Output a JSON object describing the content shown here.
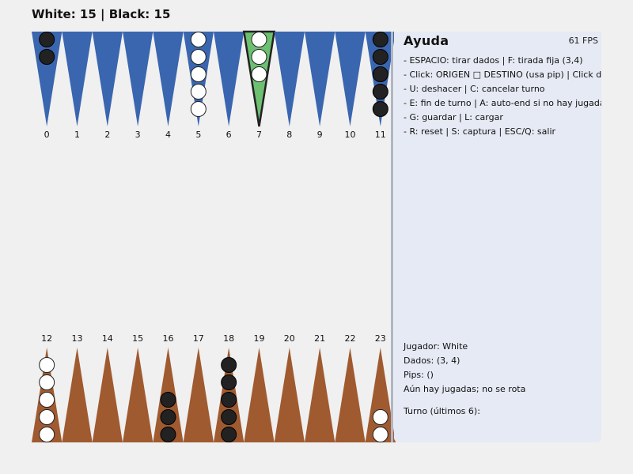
{
  "score": {
    "text": "White: 15 | Black: 15"
  },
  "colors": {
    "top_triangle": "#3a66b0",
    "bottom_triangle": "#a05a30",
    "selected_triangle": "#6cc070",
    "white_checker": "#ffffff",
    "black_checker": "#222222"
  },
  "board": {
    "selected_point": 7,
    "points": [
      {
        "label": "0",
        "white": 0,
        "black": 2
      },
      {
        "label": "1",
        "white": 0,
        "black": 0
      },
      {
        "label": "2",
        "white": 0,
        "black": 0
      },
      {
        "label": "3",
        "white": 0,
        "black": 0
      },
      {
        "label": "4",
        "white": 0,
        "black": 0
      },
      {
        "label": "5",
        "white": 5,
        "black": 0
      },
      {
        "label": "6",
        "white": 0,
        "black": 0
      },
      {
        "label": "7",
        "white": 3,
        "black": 0
      },
      {
        "label": "8",
        "white": 0,
        "black": 0
      },
      {
        "label": "9",
        "white": 0,
        "black": 0
      },
      {
        "label": "10",
        "white": 0,
        "black": 0
      },
      {
        "label": "11",
        "white": 0,
        "black": 5
      },
      {
        "label": "12",
        "white": 5,
        "black": 0
      },
      {
        "label": "13",
        "white": 0,
        "black": 0
      },
      {
        "label": "14",
        "white": 0,
        "black": 0
      },
      {
        "label": "15",
        "white": 0,
        "black": 0
      },
      {
        "label": "16",
        "white": 0,
        "black": 3
      },
      {
        "label": "17",
        "white": 0,
        "black": 0
      },
      {
        "label": "18",
        "white": 0,
        "black": 5
      },
      {
        "label": "19",
        "white": 0,
        "black": 0
      },
      {
        "label": "20",
        "white": 0,
        "black": 0
      },
      {
        "label": "21",
        "white": 0,
        "black": 0
      },
      {
        "label": "22",
        "white": 0,
        "black": 0
      },
      {
        "label": "23",
        "white": 2,
        "black": 0
      }
    ]
  },
  "help": {
    "title": "Ayuda",
    "fps": "61 FPS",
    "lines": [
      "- ESPACIO: tirar dados  | F: tirada fija (3,4)",
      "- Click: ORIGEN □ DESTINO (usa pip)  |  Click der.: cancelar",
      "- U: deshacer  |  C: cancelar turno",
      "- E: fin de turno  |  A: auto-end si no hay jugadas",
      "- G: guardar  |  L: cargar",
      "- R: reset  |  S: captura  |  ESC/Q: salir"
    ]
  },
  "status": {
    "player": "Jugador: White",
    "dice": "Dados: (3, 4)",
    "pips": "Pips:  ()",
    "moves_note": "Aún hay jugadas; no se rota",
    "turn_log": "Turno (últimos 6):"
  }
}
